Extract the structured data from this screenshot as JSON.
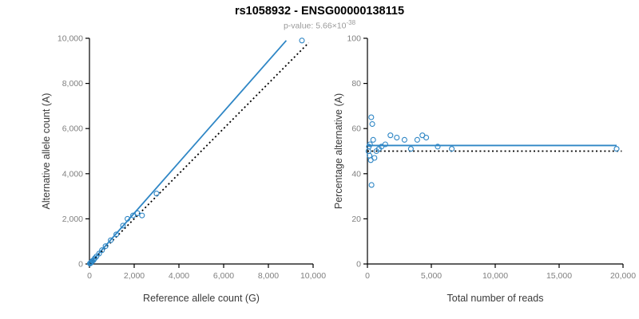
{
  "header": {
    "title": "rs1058932 - ENSG00000138115",
    "pvalue_prefix": "p-value: 5.66×10",
    "pvalue_exponent": "-38"
  },
  "colors": {
    "accent_blue": "#2e86c5",
    "identity_black": "#000000",
    "tick_label_gray": "#808080",
    "axis_title_color": "#3a3a3a",
    "axis_line_color": "#000000"
  },
  "chart_data": [
    {
      "type": "scatter",
      "name": "allele-count-scatter",
      "xlabel": "Reference allele count (G)",
      "ylabel": "Alternative allele count (A)",
      "xlim": [
        0,
        10000
      ],
      "ylim": [
        0,
        10000
      ],
      "xticks": [
        0,
        2000,
        4000,
        6000,
        8000,
        10000
      ],
      "yticks": [
        0,
        2000,
        4000,
        6000,
        8000,
        10000
      ],
      "grid": false,
      "legend": null,
      "point_color": "#2e86c5",
      "points": [
        [
          20,
          20
        ],
        [
          45,
          35
        ],
        [
          65,
          60
        ],
        [
          95,
          85
        ],
        [
          130,
          130
        ],
        [
          180,
          170
        ],
        [
          240,
          250
        ],
        [
          310,
          330
        ],
        [
          430,
          460
        ],
        [
          560,
          610
        ],
        [
          720,
          790
        ],
        [
          950,
          1050
        ],
        [
          1200,
          1310
        ],
        [
          1500,
          1700
        ],
        [
          1700,
          2000
        ],
        [
          1950,
          2150
        ],
        [
          2150,
          2250
        ],
        [
          2350,
          2150
        ],
        [
          3000,
          3120
        ],
        [
          9500,
          9900
        ]
      ],
      "lines": [
        {
          "name": "regression-line",
          "x": [
            20,
            8800
          ],
          "y": [
            20,
            9900
          ],
          "color": "#2e86c5",
          "dash": "",
          "width": 1.8
        },
        {
          "name": "identity-line",
          "x": [
            0,
            9800
          ],
          "y": [
            0,
            9800
          ],
          "color": "#000000",
          "dash": "2,3.2",
          "width": 1.8
        }
      ]
    },
    {
      "type": "scatter",
      "name": "percentage-alternative-scatter",
      "xlabel": "Total number of reads",
      "ylabel": "Percentage alternative (A)",
      "xlim": [
        0,
        20000
      ],
      "ylim": [
        0,
        100
      ],
      "xticks": [
        0,
        5000,
        10000,
        15000,
        20000
      ],
      "yticks": [
        0,
        20,
        40,
        60,
        80,
        100
      ],
      "grid": false,
      "legend": null,
      "point_color": "#2e86c5",
      "points": [
        [
          80,
          50
        ],
        [
          120,
          52
        ],
        [
          160,
          48
        ],
        [
          200,
          53
        ],
        [
          260,
          46
        ],
        [
          300,
          65
        ],
        [
          380,
          62
        ],
        [
          320,
          35
        ],
        [
          450,
          55
        ],
        [
          550,
          47
        ],
        [
          700,
          50
        ],
        [
          900,
          51
        ],
        [
          1100,
          52
        ],
        [
          1400,
          53
        ],
        [
          1800,
          57
        ],
        [
          2300,
          56
        ],
        [
          2900,
          55
        ],
        [
          3400,
          51
        ],
        [
          3900,
          55
        ],
        [
          4300,
          57
        ],
        [
          4600,
          56
        ],
        [
          5500,
          52
        ],
        [
          6600,
          51
        ],
        [
          19500,
          51
        ]
      ],
      "lines": [
        {
          "name": "mean-percentage-line",
          "x": [
            0,
            19500
          ],
          "y": [
            52.5,
            52.5
          ],
          "color": "#2e86c5",
          "dash": "",
          "width": 1.8
        },
        {
          "name": "expected-50-line",
          "x": [
            0,
            19900
          ],
          "y": [
            50,
            50
          ],
          "color": "#000000",
          "dash": "2,3.2",
          "width": 1.8
        }
      ]
    }
  ]
}
